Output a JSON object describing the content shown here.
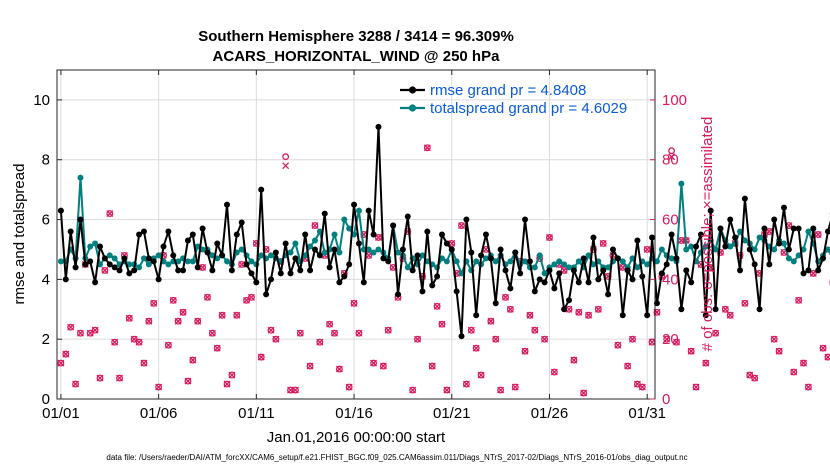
{
  "chart_data": {
    "type": "line",
    "title": "Southern Hemisphere 3288 / 3414 = 96.309%",
    "subtitle": "ACARS_HORIZONTAL_WIND @ 250 hPa",
    "xlabel": "Jan.01,2016 00:00:00 start",
    "ylabel_left": "rmse and totalspread",
    "ylabel_right": "# of obs: o=possible; ×=assimilated",
    "footer": "data file: /Users/raeder/DAI/ATM_forcXX/CAM6_setup/f.e21.FHIST_BGC.f09_025.CAM6assim.011/Diags_NTrS_2017-02/Diags_NTrS_2016-01/obs_diag_output.nc",
    "xlim": [
      0.8,
      31.4
    ],
    "ylim_left": [
      0,
      11
    ],
    "ylim_right": [
      0,
      110
    ],
    "x_ticks": [
      1,
      6,
      11,
      16,
      21,
      26,
      31
    ],
    "x_tick_labels": [
      "01/01",
      "01/06",
      "01/11",
      "01/16",
      "01/21",
      "01/26",
      "01/31"
    ],
    "y_ticks_left": [
      0,
      2,
      4,
      6,
      8,
      10
    ],
    "y_ticks_right": [
      0,
      20,
      40,
      60,
      80,
      100
    ],
    "colors": {
      "rmse": "#000000",
      "spread": "#00807f",
      "obs": "#d81a60",
      "legend_text": "#0b5bd6"
    },
    "series": [
      {
        "name": "rmse grand pr = 4.8408",
        "color": "#000000",
        "values": [
          6.3,
          4.0,
          5.6,
          4.4,
          6.0,
          4.5,
          4.6,
          3.9,
          5.1,
          4.7,
          4.5,
          4.4,
          4.3,
          4.7,
          4.2,
          4.3,
          5.5,
          5.6,
          4.7,
          4.6,
          4.0,
          5.1,
          5.6,
          4.8,
          4.3,
          4.3,
          5.3,
          5.5,
          4.4,
          5.7,
          4.9,
          4.3,
          5.2,
          4.8,
          6.5,
          4.3,
          5.5,
          5.9,
          4.5,
          4.2,
          3.9,
          7.0,
          3.5,
          4.0,
          4.9,
          4.2,
          5.2,
          4.2,
          4.7,
          4.3,
          5.5,
          4.3,
          5.0,
          4.8,
          6.2,
          4.4,
          5.0,
          3.9,
          4.1,
          4.5,
          6.5,
          5.2,
          3.9,
          6.3,
          5.5,
          9.1,
          4.7,
          4.6,
          5.8,
          3.5,
          5.0,
          6.1,
          4.3,
          4.8,
          3.6,
          5.6,
          3.8,
          4.1,
          5.5,
          5.2,
          5.0,
          3.6,
          2.1,
          6.0,
          4.9,
          2.8,
          4.8,
          5.5,
          4.7,
          3.2,
          5.0,
          4.3,
          3.7,
          4.9,
          4.2,
          6.0,
          4.6,
          3.6,
          4.0,
          3.9,
          4.3,
          3.7,
          4.2,
          3.0,
          3.3,
          4.3,
          3.9,
          4.7,
          3.9,
          5.4,
          4.0,
          4.3,
          3.5,
          5.0,
          4.7,
          2.8,
          4.3,
          4.0,
          5.3,
          4.1,
          2.8,
          5.4,
          3.2,
          4.2,
          4.5,
          5.5,
          4.7,
          3.0,
          4.3,
          3.9,
          5.1,
          5.5,
          2.8,
          6.3,
          3.0,
          5.7,
          5.1,
          6.0,
          5.4,
          4.3,
          6.7,
          5.0,
          4.5,
          3.0,
          5.7,
          4.5,
          6.0,
          5.2,
          6.4,
          5.0,
          5.7,
          5.7,
          4.2,
          4.3,
          5.7,
          4.3,
          4.7,
          5.6,
          6.2,
          5.0,
          4.6,
          7.2,
          4.3,
          5.7,
          5.5,
          5.1,
          5.5
        ]
      },
      {
        "name": "totalspread grand pr = 4.6029",
        "color": "#00807f",
        "values": [
          4.6,
          4.6,
          5.0,
          4.7,
          7.4,
          4.7,
          5.1,
          5.2,
          4.5,
          4.7,
          4.8,
          4.7,
          4.5,
          4.6,
          4.5,
          4.5,
          4.4,
          4.7,
          4.5,
          4.7,
          4.8,
          4.6,
          4.5,
          4.6,
          4.6,
          4.7,
          4.6,
          4.6,
          5.1,
          5.0,
          5.0,
          4.8,
          4.7,
          4.8,
          4.6,
          4.5,
          4.9,
          5.0,
          4.8,
          4.6,
          4.5,
          4.8,
          4.7,
          4.8,
          4.7,
          4.6,
          4.8,
          4.9,
          5.2,
          4.6,
          4.8,
          5.1,
          5.3,
          5.6,
          4.9,
          5.0,
          5.5,
          4.9,
          6.0,
          5.7,
          5.5,
          6.3,
          5.0,
          5.0,
          4.9,
          5.0,
          4.9,
          4.7,
          5.8,
          4.9,
          4.8,
          4.4,
          4.7,
          4.5,
          4.8,
          4.6,
          4.5,
          4.4,
          4.7,
          4.6,
          5.0,
          4.6,
          4.2,
          4.6,
          4.3,
          4.6,
          4.5,
          4.7,
          4.8,
          4.6,
          4.8,
          4.5,
          4.6,
          4.9,
          4.5,
          4.6,
          4.4,
          4.4,
          4.8,
          4.2,
          4.4,
          4.5,
          4.6,
          4.5,
          4.4,
          4.4,
          4.6,
          4.4,
          4.8,
          4.5,
          4.6,
          4.4,
          4.4,
          4.6,
          4.7,
          4.6,
          4.4,
          4.7,
          4.4,
          4.6,
          4.5,
          4.7,
          4.6,
          5.0,
          4.8,
          4.7,
          4.6,
          7.2,
          5.0,
          5.1,
          4.6,
          4.9,
          5.1,
          5.3,
          5.0,
          5.7,
          5.3,
          5.1,
          5.2,
          5.6,
          5.3,
          5.2,
          5.0,
          5.4,
          5.3,
          5.1,
          5.0,
          5.3,
          5.2,
          4.7,
          4.6,
          4.8,
          5.0,
          5.6,
          5.2,
          4.6,
          4.8,
          5.0,
          4.7,
          4.9,
          5.1,
          5.2,
          5.3,
          4.8,
          5.6,
          5.4,
          5.2,
          5.0
        ]
      },
      {
        "name": "obs possible (o)",
        "color": "#d81a60",
        "values": [
          12,
          15,
          24,
          5,
          22,
          45,
          22,
          23,
          7,
          43,
          62,
          19,
          7,
          48,
          27,
          20,
          19,
          12,
          26,
          32,
          4,
          48,
          18,
          33,
          26,
          29,
          6,
          13,
          26,
          44,
          34,
          22,
          17,
          28,
          5,
          8,
          28,
          45,
          33,
          34,
          52,
          14,
          50,
          23,
          20,
          46,
          81,
          3,
          3,
          22,
          47,
          11,
          58,
          19,
          48,
          25,
          22,
          10,
          42,
          4,
          32,
          22,
          55,
          48,
          12,
          54,
          11,
          23,
          44,
          34,
          47,
          56,
          3,
          20,
          41,
          84,
          11,
          31,
          25,
          3,
          52,
          42,
          58,
          5,
          23,
          17,
          8,
          50,
          26,
          20,
          3,
          34,
          30,
          4,
          46,
          16,
          28,
          23,
          47,
          20,
          54,
          9,
          45,
          43,
          30,
          13,
          29,
          2,
          28,
          50,
          30,
          52,
          41,
          48,
          18,
          44,
          11,
          20,
          5,
          4,
          50,
          19,
          29,
          41,
          20,
          83,
          19,
          53,
          53,
          16,
          4,
          45,
          12,
          44,
          22,
          49,
          30,
          28,
          52,
          48,
          32,
          8,
          7,
          42,
          55,
          56,
          20,
          16,
          49,
          58,
          9,
          33,
          12,
          4,
          42,
          55,
          17,
          14,
          39,
          60,
          46,
          60,
          68,
          43,
          53,
          8,
          4,
          48
        ]
      },
      {
        "name": "obs assimilated (x)",
        "color": "#d81a60",
        "values": [
          12,
          15,
          24,
          5,
          22,
          45,
          22,
          23,
          7,
          43,
          62,
          19,
          7,
          48,
          27,
          20,
          19,
          12,
          26,
          32,
          4,
          48,
          18,
          33,
          26,
          29,
          6,
          13,
          26,
          44,
          34,
          22,
          17,
          28,
          5,
          8,
          28,
          45,
          33,
          34,
          52,
          14,
          50,
          23,
          20,
          46,
          78,
          3,
          3,
          22,
          47,
          11,
          58,
          19,
          48,
          25,
          22,
          10,
          42,
          4,
          32,
          22,
          55,
          48,
          12,
          54,
          11,
          23,
          44,
          34,
          47,
          56,
          3,
          20,
          41,
          84,
          11,
          31,
          25,
          3,
          52,
          42,
          58,
          5,
          23,
          17,
          8,
          50,
          26,
          20,
          3,
          34,
          30,
          4,
          46,
          16,
          28,
          23,
          47,
          20,
          54,
          9,
          45,
          43,
          30,
          13,
          29,
          2,
          28,
          50,
          30,
          52,
          41,
          48,
          18,
          44,
          11,
          20,
          5,
          4,
          50,
          19,
          29,
          41,
          20,
          81,
          19,
          53,
          53,
          16,
          4,
          45,
          12,
          44,
          22,
          49,
          30,
          28,
          52,
          48,
          32,
          8,
          7,
          42,
          55,
          56,
          20,
          16,
          49,
          58,
          9,
          33,
          12,
          4,
          42,
          55,
          17,
          14,
          39,
          60,
          46,
          60,
          40,
          43,
          53,
          8,
          4,
          48
        ]
      }
    ],
    "legend": [
      "rmse grand pr = 4.8408",
      "totalspread grand pr = 4.6029"
    ],
    "legend_position": "top-right"
  }
}
